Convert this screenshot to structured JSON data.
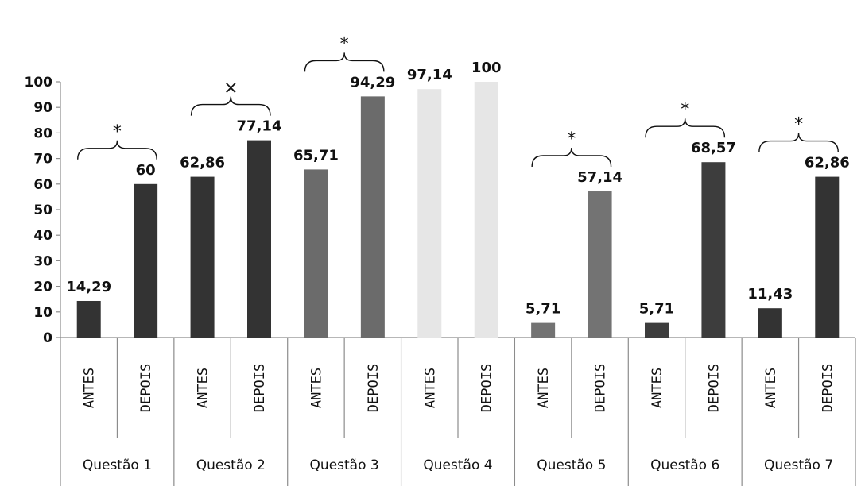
{
  "chart_data": {
    "type": "bar",
    "title": "",
    "xlabel": "",
    "ylabel": "",
    "ylim": [
      0,
      100
    ],
    "yticks": [
      0,
      10,
      20,
      30,
      40,
      50,
      60,
      70,
      80,
      90,
      100
    ],
    "grid": false,
    "legend": "none",
    "groups": [
      {
        "label": "Questão 1",
        "annotation": "*",
        "bars": [
          {
            "sub": "ANTES",
            "value": 14.29,
            "label": "14,29",
            "color": "#333333"
          },
          {
            "sub": "DEPOIS",
            "value": 60,
            "label": "60",
            "color": "#333333"
          }
        ]
      },
      {
        "label": "Questão 2",
        "annotation": "×",
        "bars": [
          {
            "sub": "ANTES",
            "value": 62.86,
            "label": "62,86",
            "color": "#333333"
          },
          {
            "sub": "DEPOIS",
            "value": 77.14,
            "label": "77,14",
            "color": "#333333"
          }
        ]
      },
      {
        "label": "Questão 3",
        "annotation": "*",
        "bars": [
          {
            "sub": "ANTES",
            "value": 65.71,
            "label": "65,71",
            "color": "#6b6b6b"
          },
          {
            "sub": "DEPOIS",
            "value": 94.29,
            "label": "94,29",
            "color": "#6b6b6b"
          }
        ]
      },
      {
        "label": "Questão 4",
        "annotation": "",
        "bars": [
          {
            "sub": "ANTES",
            "value": 97.14,
            "label": "97,14",
            "color": "#e6e6e6"
          },
          {
            "sub": "DEPOIS",
            "value": 100,
            "label": "100",
            "color": "#e6e6e6"
          }
        ]
      },
      {
        "label": "Questão 5",
        "annotation": "*",
        "bars": [
          {
            "sub": "ANTES",
            "value": 5.71,
            "label": "5,71",
            "color": "#737373"
          },
          {
            "sub": "DEPOIS",
            "value": 57.14,
            "label": "57,14",
            "color": "#737373"
          }
        ]
      },
      {
        "label": "Questão 6",
        "annotation": "*",
        "bars": [
          {
            "sub": "ANTES",
            "value": 5.71,
            "label": "5,71",
            "color": "#3d3d3d"
          },
          {
            "sub": "DEPOIS",
            "value": 68.57,
            "label": "68,57",
            "color": "#3d3d3d"
          }
        ]
      },
      {
        "label": "Questão 7",
        "annotation": "*",
        "bars": [
          {
            "sub": "ANTES",
            "value": 11.43,
            "label": "11,43",
            "color": "#333333"
          },
          {
            "sub": "DEPOIS",
            "value": 62.86,
            "label": "62,86",
            "color": "#333333"
          }
        ]
      }
    ]
  }
}
